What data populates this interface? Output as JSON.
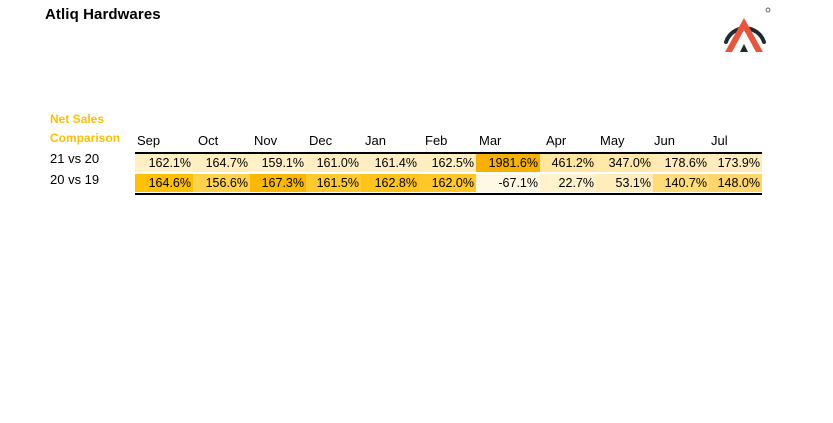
{
  "header": {
    "title": "Atliq Hardwares",
    "logo": "atliq-logo-icon"
  },
  "table": {
    "caption_line1": "Net Sales",
    "caption_line2": "Comparison",
    "months": [
      "Sep",
      "Oct",
      "Nov",
      "Dec",
      "Jan",
      "Feb",
      "Mar",
      "Apr",
      "May",
      "Jun",
      "Jul"
    ],
    "rows": [
      {
        "label": "21 vs 20",
        "values": [
          "162.1%",
          "164.7%",
          "159.1%",
          "161.0%",
          "161.4%",
          "162.5%",
          "1981.6%",
          "461.2%",
          "347.0%",
          "178.6%",
          "173.9%"
        ],
        "colors": [
          "#fff0c4",
          "#ffeec0",
          "#fff0c8",
          "#ffeec4",
          "#ffeec4",
          "#ffeec0",
          "#f5b000",
          "#ffe69e",
          "#ffe8a8",
          "#ffeab8",
          "#ffecbc"
        ]
      },
      {
        "label": "20 vs 19",
        "values": [
          "164.6%",
          "156.6%",
          "167.3%",
          "161.5%",
          "162.8%",
          "162.0%",
          "-67.1%",
          "22.7%",
          "53.1%",
          "140.7%",
          "148.0%"
        ],
        "colors": [
          "#ffc000",
          "#ffd24e",
          "#fbb800",
          "#ffca2e",
          "#ffc41a",
          "#ffc828",
          "#fff8e4",
          "#fff2cc",
          "#ffeebc",
          "#ffdc78",
          "#ffd66a"
        ]
      }
    ]
  },
  "colors": {
    "accent": "#ffc000",
    "logo_orange": "#e8553a",
    "logo_dark": "#1f2a2e"
  }
}
